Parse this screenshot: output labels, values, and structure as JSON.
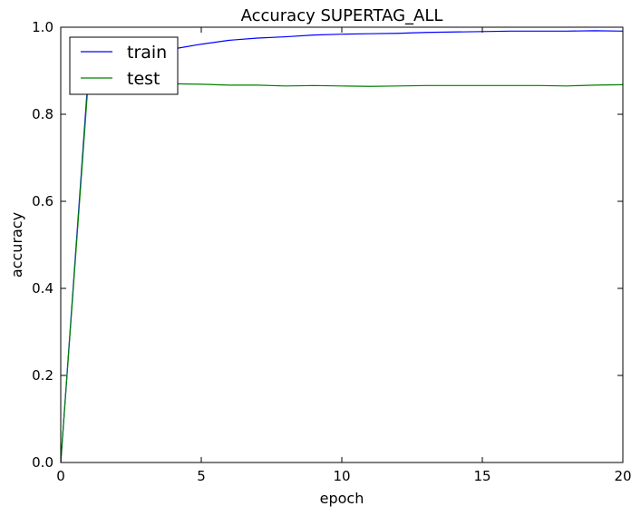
{
  "chart_data": {
    "type": "line",
    "title": "Accuracy SUPERTAG_ALL",
    "xlabel": "epoch",
    "ylabel": "accuracy",
    "xlim": [
      0,
      20
    ],
    "ylim": [
      0,
      1.0
    ],
    "xticks": [
      0,
      5,
      10,
      15,
      20
    ],
    "yticks": [
      0.0,
      0.2,
      0.4,
      0.6,
      0.8,
      1.0
    ],
    "xtick_labels": [
      "0",
      "5",
      "10",
      "15",
      "20"
    ],
    "ytick_labels": [
      "0.0",
      "0.2",
      "0.4",
      "0.6",
      "0.8",
      "1.0"
    ],
    "grid": false,
    "legend": "top-left",
    "x": [
      0,
      1,
      2,
      3,
      4,
      5,
      6,
      7,
      8,
      9,
      10,
      11,
      12,
      13,
      14,
      15,
      16,
      17,
      18,
      19,
      20
    ],
    "series": [
      {
        "name": "train",
        "color": "#0000ff",
        "values": [
          0.0,
          0.91,
          0.925,
          0.937,
          0.95,
          0.961,
          0.97,
          0.975,
          0.978,
          0.982,
          0.984,
          0.985,
          0.986,
          0.988,
          0.989,
          0.99,
          0.991,
          0.991,
          0.991,
          0.992,
          0.991
        ]
      },
      {
        "name": "test",
        "color": "#008000",
        "values": [
          0.0,
          0.895,
          0.885,
          0.878,
          0.87,
          0.869,
          0.867,
          0.867,
          0.865,
          0.866,
          0.865,
          0.864,
          0.865,
          0.866,
          0.866,
          0.866,
          0.866,
          0.866,
          0.865,
          0.867,
          0.868
        ]
      }
    ]
  }
}
